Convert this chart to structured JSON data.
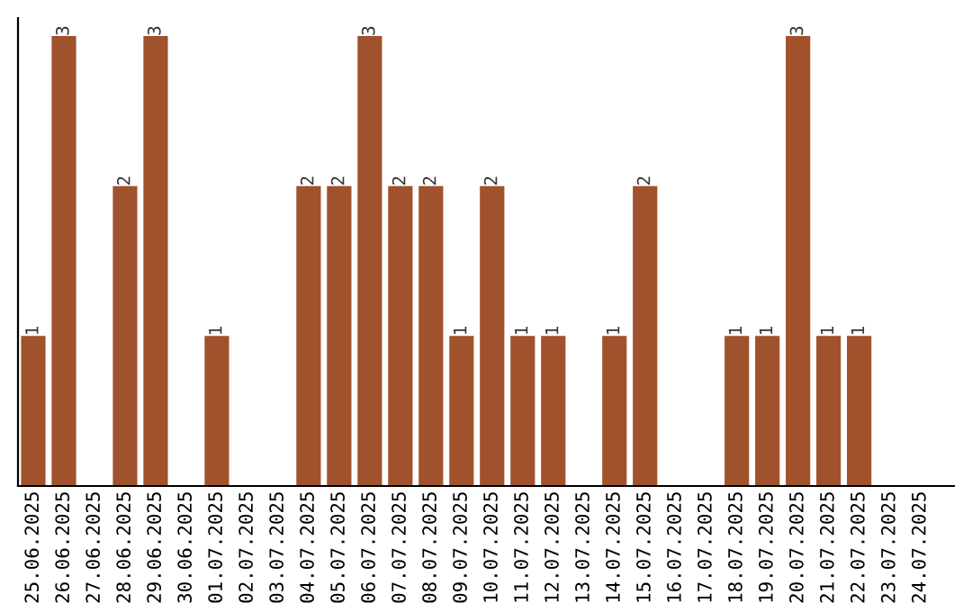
{
  "chart_data": {
    "type": "bar",
    "categories": [
      "25.06.2025",
      "26.06.2025",
      "27.06.2025",
      "28.06.2025",
      "29.06.2025",
      "30.06.2025",
      "01.07.2025",
      "02.07.2025",
      "03.07.2025",
      "04.07.2025",
      "05.07.2025",
      "06.07.2025",
      "07.07.2025",
      "08.07.2025",
      "09.07.2025",
      "10.07.2025",
      "11.07.2025",
      "12.07.2025",
      "13.07.2025",
      "14.07.2025",
      "15.07.2025",
      "16.07.2025",
      "17.07.2025",
      "18.07.2025",
      "19.07.2025",
      "20.07.2025",
      "21.07.2025",
      "22.07.2025",
      "23.07.2025",
      "24.07.2025"
    ],
    "values": [
      1,
      3,
      0,
      2,
      3,
      0,
      1,
      0,
      0,
      2,
      2,
      3,
      2,
      2,
      1,
      2,
      1,
      1,
      0,
      1,
      2,
      0,
      0,
      1,
      1,
      3,
      1,
      1,
      0,
      0
    ],
    "value_labels": [
      "1",
      "3",
      null,
      "2",
      "3",
      null,
      "1",
      null,
      null,
      "2",
      "2",
      "3",
      "2",
      "2",
      "1",
      "2",
      "1",
      "1",
      null,
      "1",
      "2",
      null,
      null,
      "1",
      "1",
      "3",
      "1",
      "1",
      null,
      null
    ],
    "color": "#a0522d",
    "tick_labels": "x",
    "grid": false,
    "legend": false
  }
}
